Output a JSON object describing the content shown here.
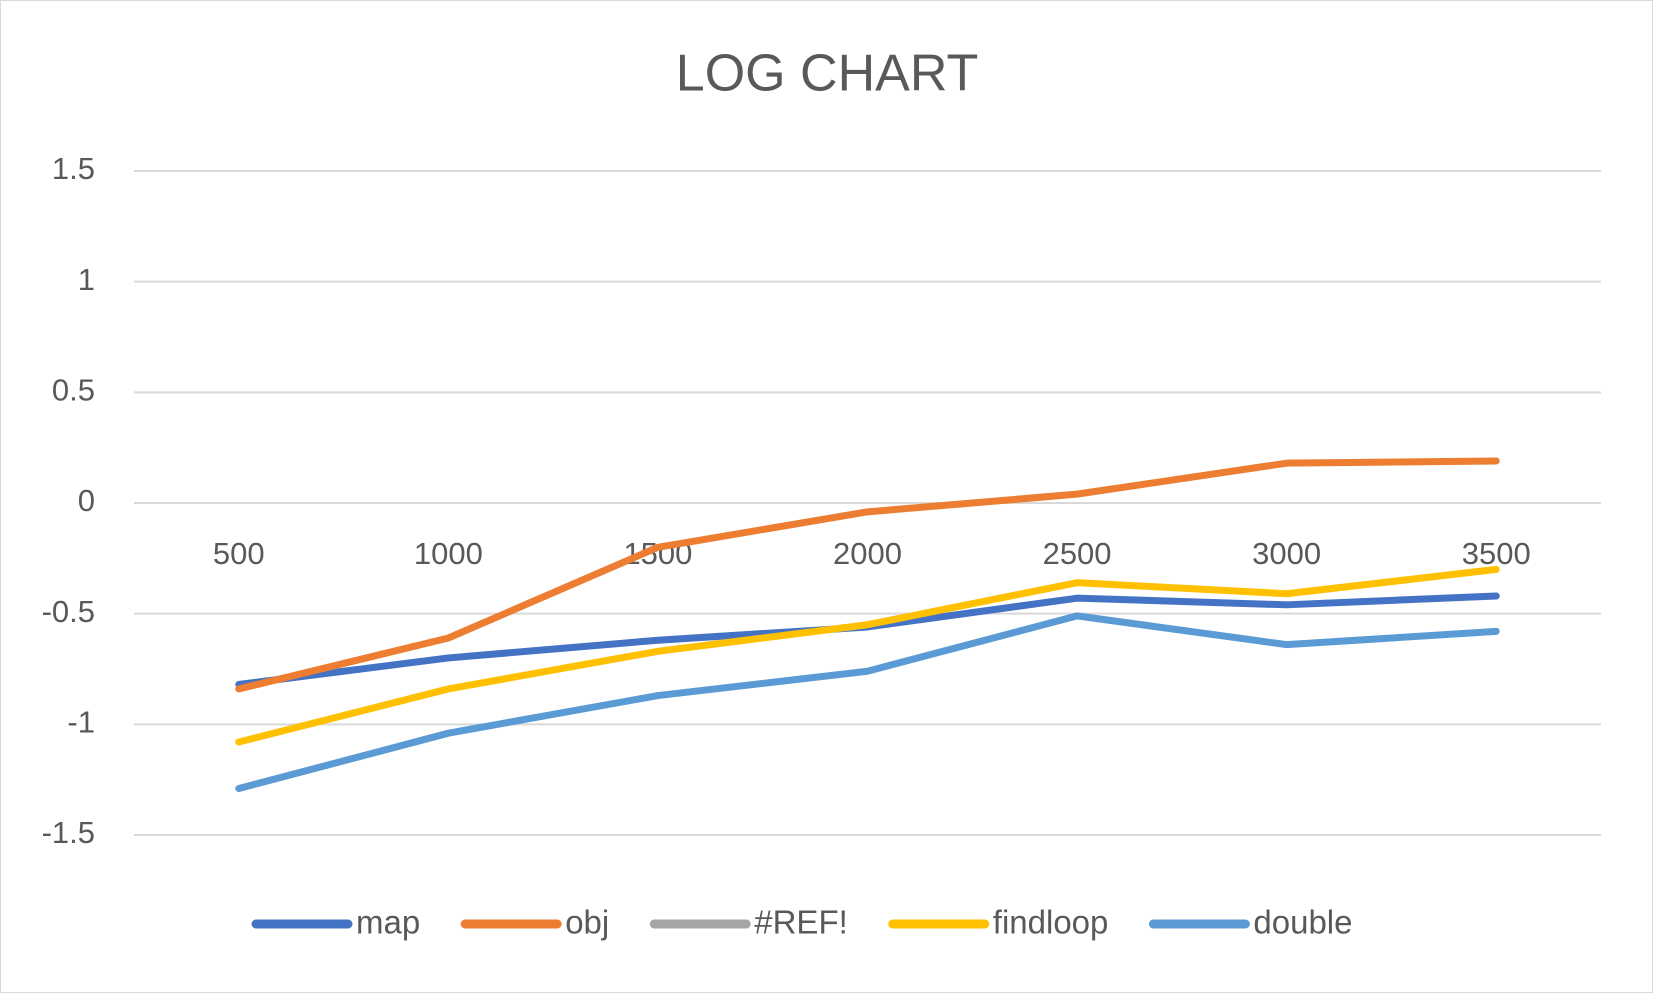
{
  "chart_data": {
    "type": "line",
    "title": "LOG CHART",
    "categories": [
      "500",
      "1000",
      "1500",
      "2000",
      "2500",
      "3000",
      "3500"
    ],
    "series": [
      {
        "name": "map",
        "color": "#4472c4",
        "values": [
          -0.82,
          -0.7,
          -0.62,
          -0.56,
          -0.43,
          -0.46,
          -0.42
        ]
      },
      {
        "name": "obj",
        "color": "#ed7d31",
        "values": [
          -0.84,
          -0.61,
          -0.2,
          -0.04,
          0.04,
          0.18,
          0.19
        ]
      },
      {
        "name": "#REF!",
        "color": "#a5a5a5",
        "values": [
          null,
          null,
          null,
          null,
          null,
          null,
          null
        ]
      },
      {
        "name": "findloop",
        "color": "#ffc000",
        "values": [
          -1.08,
          -0.84,
          -0.67,
          -0.55,
          -0.36,
          -0.41,
          -0.3
        ]
      },
      {
        "name": "double",
        "color": "#5b9bd5",
        "values": [
          -1.29,
          -1.04,
          -0.87,
          -0.76,
          -0.51,
          -0.64,
          -0.58
        ]
      }
    ],
    "ylim": [
      -1.5,
      1.5
    ],
    "yticks": [
      -1.5,
      -1,
      -0.5,
      0,
      0.5,
      1,
      1.5
    ],
    "grid": true,
    "legend": "bottom"
  }
}
